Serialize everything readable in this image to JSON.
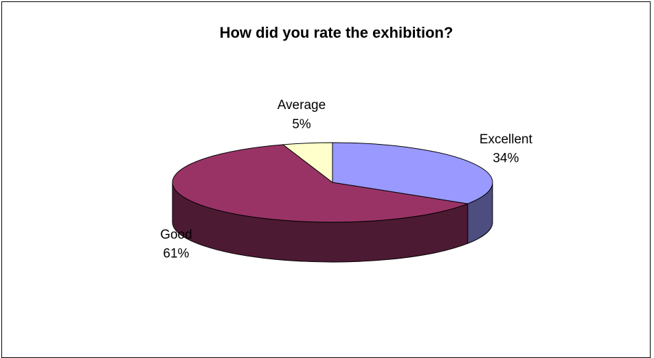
{
  "chart_data": {
    "type": "pie",
    "title": "How did you rate the exhibition?",
    "categories": [
      "Excellent",
      "Good",
      "Average"
    ],
    "values": [
      34,
      61,
      5
    ],
    "value_labels": [
      "34%",
      "61%",
      "5%"
    ],
    "unit": "%",
    "three_d": true,
    "legend": "none",
    "colors": {
      "Excellent": "#9999ff",
      "Good": "#993366",
      "Average": "#ffffcc"
    }
  }
}
